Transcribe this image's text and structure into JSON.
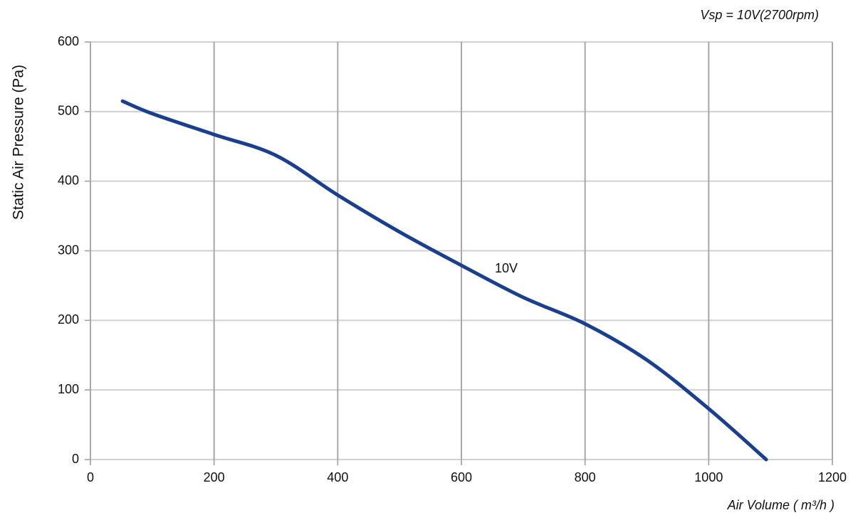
{
  "chart_data": {
    "type": "line",
    "title": "Vsp = 10V(2700rpm)",
    "x_label": "Air Volume ( m³/h )",
    "y_label": "Static Air Pressure  (Pa)",
    "x": [
      52,
      100,
      200,
      300,
      400,
      500,
      600,
      700,
      800,
      900,
      1000,
      1093
    ],
    "series": [
      {
        "name": "10V",
        "color": "#1b3f8f",
        "values": [
          515,
          497,
          467,
          437,
          380,
          327,
          279,
          233,
          195,
          143,
          73,
          0
        ]
      }
    ],
    "xlim": [
      0,
      1200
    ],
    "xticks": [
      0,
      200,
      400,
      600,
      800,
      1000,
      1200
    ],
    "ylim": [
      0,
      600
    ],
    "yticks": [
      0,
      100,
      200,
      300,
      400,
      500,
      600
    ],
    "grid": true
  }
}
